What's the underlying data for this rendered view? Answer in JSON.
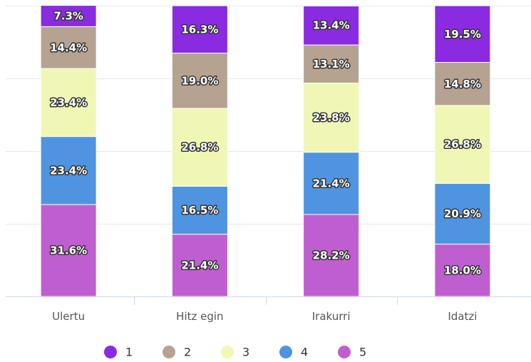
{
  "chart_data": {
    "type": "bar",
    "stacked": true,
    "percent_stacked": true,
    "categories": [
      "Ulertu",
      "Hitz egin",
      "Irakurri",
      "Idatzi"
    ],
    "series": [
      {
        "name": "1",
        "color": "#8a2be2",
        "values": [
          7.3,
          16.3,
          13.4,
          19.5
        ]
      },
      {
        "name": "2",
        "color": "#b5a291",
        "values": [
          14.4,
          19.0,
          13.1,
          14.8
        ]
      },
      {
        "name": "3",
        "color": "#f0f7b4",
        "values": [
          23.4,
          26.8,
          23.8,
          26.8
        ]
      },
      {
        "name": "4",
        "color": "#4f94e0",
        "values": [
          23.4,
          16.5,
          21.4,
          20.9
        ]
      },
      {
        "name": "5",
        "color": "#bf5fcf",
        "values": [
          31.6,
          21.4,
          28.2,
          18.0
        ]
      }
    ],
    "value_labels": [
      [
        "7.3%",
        "16.3%",
        "13.4%",
        "19.5%"
      ],
      [
        "14.4%",
        "19.0%",
        "13.1%",
        "14.8%"
      ],
      [
        "23.4%",
        "26.8%",
        "23.8%",
        "26.8%"
      ],
      [
        "23.4%",
        "16.5%",
        "21.4%",
        "20.9%"
      ],
      [
        "31.6%",
        "21.4%",
        "28.2%",
        "18.0%"
      ]
    ],
    "ylim": [
      0,
      100
    ],
    "grid": true,
    "legend_position": "bottom",
    "title": "",
    "xlabel": "",
    "ylabel": ""
  },
  "colors": {
    "grid": "#e6e6e6",
    "axis": "#ccd6eb",
    "label_text": "#ffffff",
    "label_outline": "#333333"
  }
}
